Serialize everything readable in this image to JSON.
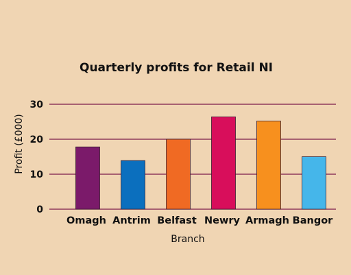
{
  "chart_data": {
    "type": "bar",
    "title": "Quarterly profits for Retail NI",
    "xlabel": "Branch",
    "ylabel": "Profit (£000)",
    "categories": [
      "Omagh",
      "Antrim",
      "Belfast",
      "Newry",
      "Armagh",
      "Bangor"
    ],
    "values": [
      17.8,
      13.9,
      20,
      26.4,
      25.2,
      15
    ],
    "colors": [
      "#7b1a6a",
      "#0b6fbe",
      "#f06a23",
      "#d80e5b",
      "#f7901e",
      "#45b6ea"
    ],
    "ylim": [
      0,
      30
    ],
    "yticks": [
      "0",
      "10",
      "20",
      "30"
    ],
    "grid": true,
    "grid_color": "#7b1a4a",
    "legend": "none"
  }
}
